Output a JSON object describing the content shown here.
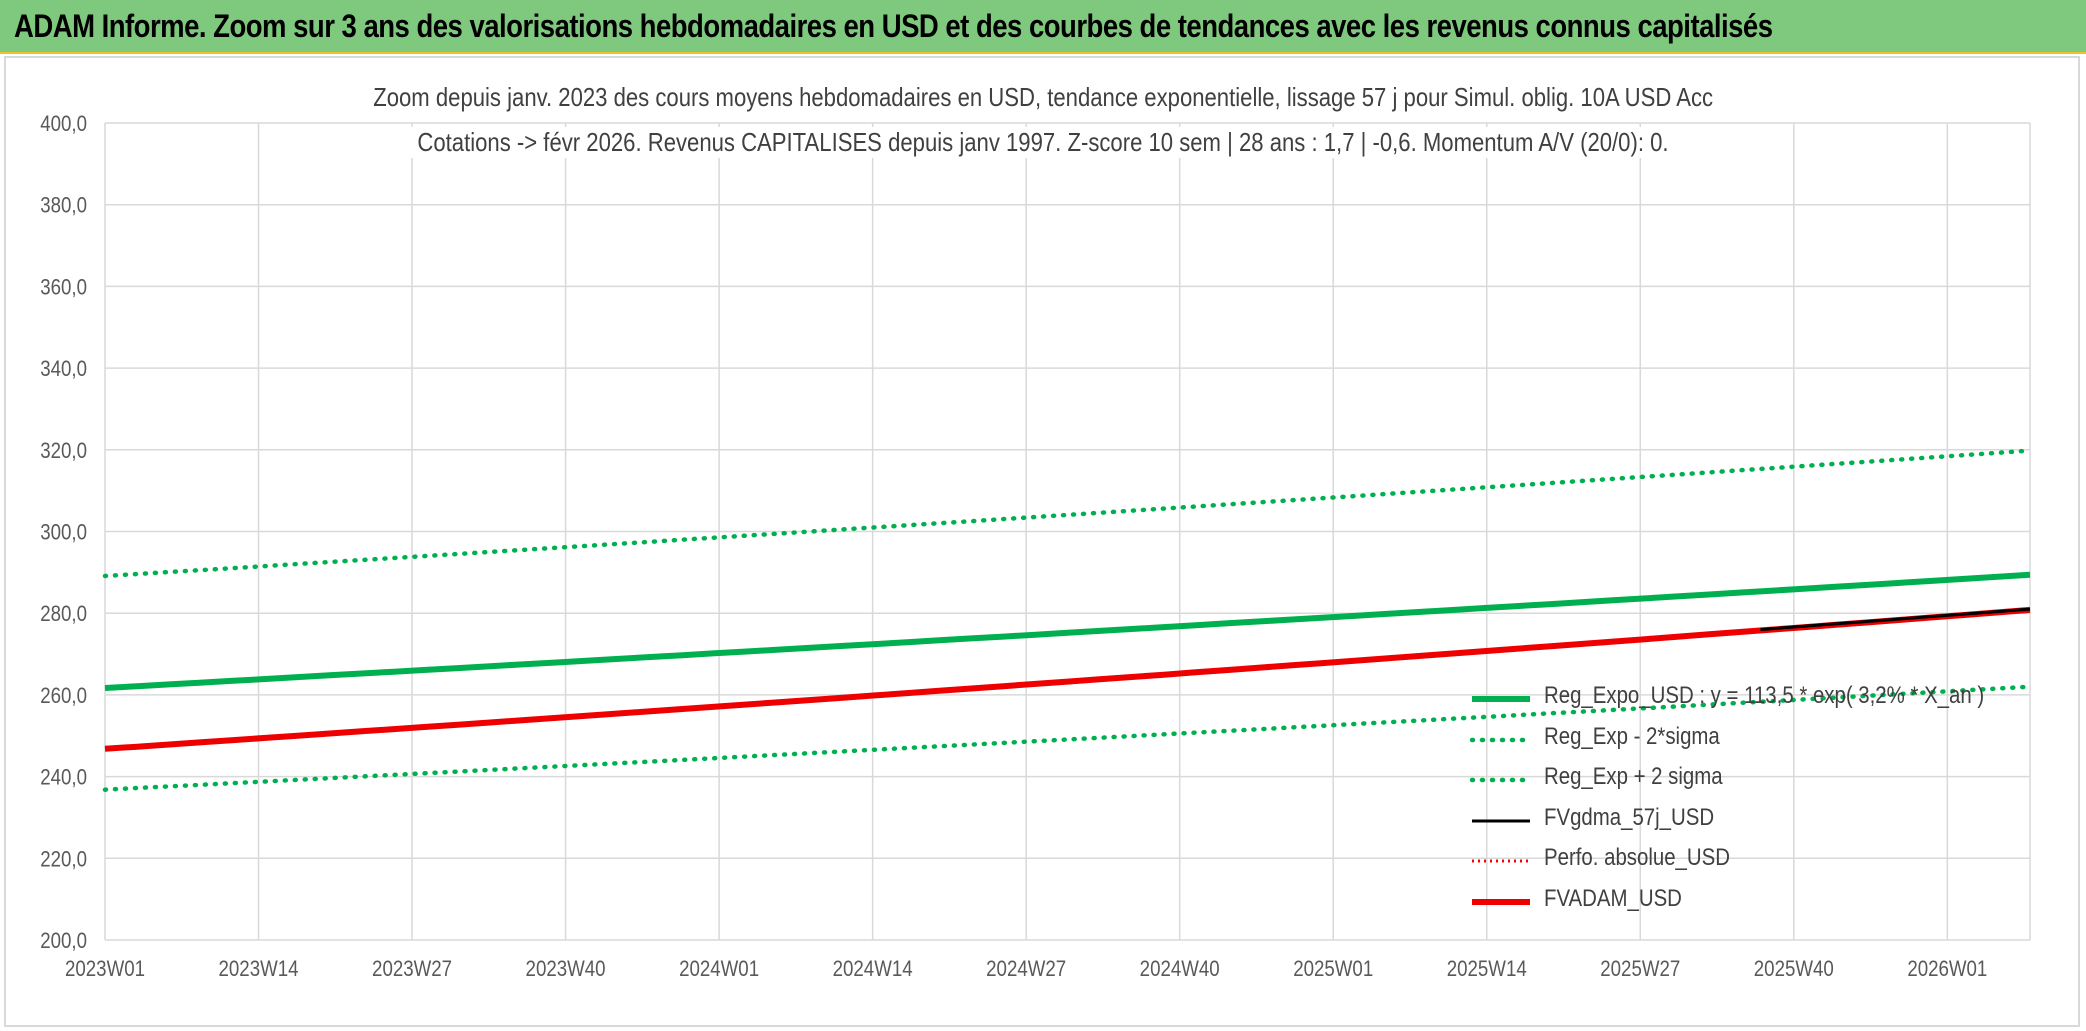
{
  "banner": {
    "title": "ADAM Informe. Zoom sur 3 ans des valorisations hebdomadaires en USD et des courbes de tendances avec les revenus connus capitalisés"
  },
  "chart_data": {
    "type": "line",
    "title_line1": "Zoom depuis janv. 2023 des cours moyens hebdomadaires en USD, tendance exponentielle, lissage 57 j pour Simul. oblig. 10A USD Acc",
    "title_line2": "Cotations -> févr 2026. Revenus CAPITALISES depuis janv 1997. Z-score 10 sem | 28 ans : 1,7 | -0,6. Momentum A/V (20/0): 0.",
    "x_ticks": [
      "2023W01",
      "2023W14",
      "2023W27",
      "2023W40",
      "2024W01",
      "2024W14",
      "2024W27",
      "2024W40",
      "2025W01",
      "2025W14",
      "2025W27",
      "2025W40",
      "2026W01"
    ],
    "x_range": [
      "2023W01",
      "2026W08"
    ],
    "y_ticks": [
      "200,0",
      "220,0",
      "240,0",
      "260,0",
      "280,0",
      "300,0",
      "320,0",
      "340,0",
      "360,0",
      "380,0",
      "400,0"
    ],
    "ylim": [
      200,
      400
    ],
    "grid": true,
    "legend_position": "bottom-right",
    "series": [
      {
        "name": "Reg_Expo_USD : y = 113,5 * exp( 3,2% * X_an )",
        "color": "#00b050",
        "style": "solid-thick",
        "start": 261.7,
        "end": 289.4
      },
      {
        "name": "Reg_Exp - 2*sigma",
        "color": "#00b050",
        "style": "dotted",
        "start": 236.8,
        "end": 262.0
      },
      {
        "name": "Reg_Exp + 2 sigma",
        "color": "#00b050",
        "style": "dotted",
        "start": 289.1,
        "end": 319.8
      },
      {
        "name": "FVgdma_57j_USD",
        "color": "#000000",
        "style": "solid",
        "start": 276.0,
        "end": 281.0
      },
      {
        "name": "Perfo. absolue_USD",
        "color": "#ff0000",
        "style": "dotted-thin",
        "start": null,
        "end": null
      },
      {
        "name": "FVADAM_USD",
        "color": "#ee0000",
        "style": "solid-thick",
        "start": 246.8,
        "end": 280.8
      }
    ]
  }
}
